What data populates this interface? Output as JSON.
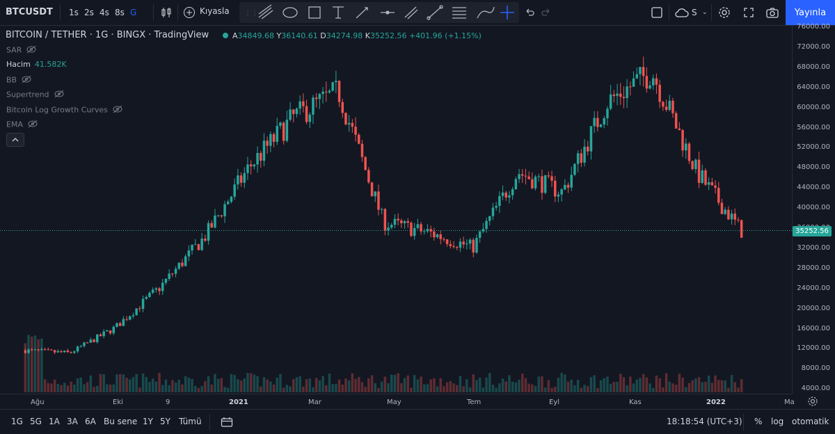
{
  "toolbar": {
    "symbol": "BTCUSDT",
    "timeframes": [
      "1s",
      "2s",
      "4s",
      "8s",
      "G"
    ],
    "active_timeframe": "G",
    "compare_label": "Kıyasla",
    "publish_label": "Yayınla",
    "drawing_tools": [
      "trend-lines-icon",
      "ellipse-icon",
      "rectangle-icon",
      "text-icon",
      "arrow-icon",
      "horizontal-line-icon",
      "parallel-channel-icon",
      "ray-icon",
      "fib-icon",
      "brush-icon",
      "crosshair-icon"
    ],
    "layout_label": "S"
  },
  "legend": {
    "title": "BITCOIN / TETHER · 1G · BINGX · TradingView",
    "open_label": "A",
    "open": "34849.68",
    "high_label": "Y",
    "high": "36140.61",
    "low_label": "D",
    "low": "34274.98",
    "close_label": "K",
    "close": "35252.56",
    "change": "+401.96 (+1.15%)"
  },
  "indicators": [
    {
      "name": "SAR"
    },
    {
      "name": "Hacim",
      "value": "41.582K"
    },
    {
      "name": "BB"
    },
    {
      "name": "Supertrend"
    },
    {
      "name": "Bitcoin Log Growth Curves"
    },
    {
      "name": "EMA"
    }
  ],
  "colors": {
    "up": "#26a69a",
    "down": "#ef5350",
    "accent": "#2962ff",
    "background": "#131722"
  },
  "chart_data": {
    "type": "candlestick",
    "symbol": "BTCUSDT",
    "last_price": "35252.56",
    "y_ticks": [
      "76000.00",
      "72000.00",
      "68000.00",
      "64000.00",
      "60000.00",
      "56000.00",
      "52000.00",
      "48000.00",
      "44000.00",
      "40000.00",
      "36000.00",
      "32000.00",
      "28000.00",
      "24000.00",
      "20000.00",
      "16000.00",
      "12000.00",
      "8000.00",
      "4000.00"
    ],
    "x_ticks": [
      "Ağu",
      "Eki",
      "9",
      "2021",
      "Mar",
      "May",
      "Tem",
      "Eyl",
      "Kas",
      "2022",
      "Ma"
    ],
    "approx_closes": [
      {
        "date": "2020-08",
        "close": 11500
      },
      {
        "date": "2020-10",
        "close": 11000
      },
      {
        "date": "2020-11",
        "close": 16000
      },
      {
        "date": "2020-12",
        "close": 24000
      },
      {
        "date": "2021-01",
        "close": 34000
      },
      {
        "date": "2021-02",
        "close": 48000
      },
      {
        "date": "2021-03",
        "close": 58000
      },
      {
        "date": "2021-04",
        "close": 63000
      },
      {
        "date": "2021-05",
        "close": 37000
      },
      {
        "date": "2021-06",
        "close": 35000
      },
      {
        "date": "2021-07",
        "close": 32000
      },
      {
        "date": "2021-08",
        "close": 47000
      },
      {
        "date": "2021-09",
        "close": 43000
      },
      {
        "date": "2021-10",
        "close": 61000
      },
      {
        "date": "2021-11",
        "close": 67000
      },
      {
        "date": "2021-12",
        "close": 47000
      },
      {
        "date": "2022-01",
        "close": 35252
      }
    ]
  },
  "bottom": {
    "ranges": [
      "1G",
      "5G",
      "1A",
      "3A",
      "6A",
      "Bu sene",
      "1Y",
      "5Y",
      "Tümü"
    ],
    "clock": "18:18:54 (UTC+3)",
    "percent": "%",
    "log": "log",
    "auto": "otomatik"
  }
}
